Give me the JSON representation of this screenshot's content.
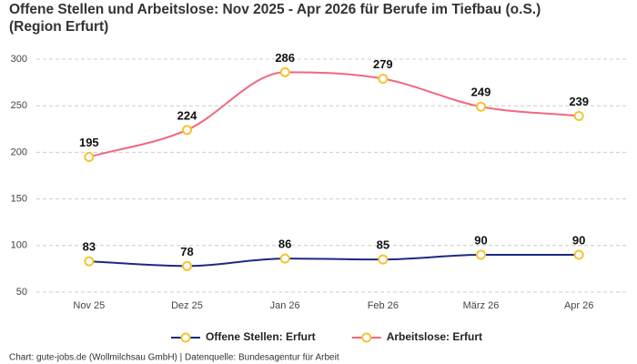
{
  "chart_data": {
    "type": "line",
    "title": "Offene Stellen und Arbeitslose: Nov 2025 - Apr 2026 für Berufe im Tiefbau (o.S.)",
    "subtitle": "(Region Erfurt)",
    "categories": [
      "Nov 25",
      "Dez 25",
      "Jan 26",
      "Feb 26",
      "März 26",
      "Apr 26"
    ],
    "series": [
      {
        "name": "Offene Stellen: Erfurt",
        "color": "#1b2a80",
        "values": [
          83,
          78,
          86,
          85,
          90,
          90
        ]
      },
      {
        "name": "Arbeitslose: Erfurt",
        "color": "#f0687e",
        "values": [
          195,
          224,
          286,
          279,
          249,
          239
        ]
      }
    ],
    "marker_color": "#f4c430",
    "ylim": [
      50,
      300
    ],
    "yticks": [
      50,
      100,
      150,
      200,
      250,
      300
    ],
    "grid": true,
    "legend": "bottom",
    "source": "Chart: gute-jobs.de (Wollmilchsau GmbH) | Datenquelle: Bundesagentur für Arbeit"
  }
}
